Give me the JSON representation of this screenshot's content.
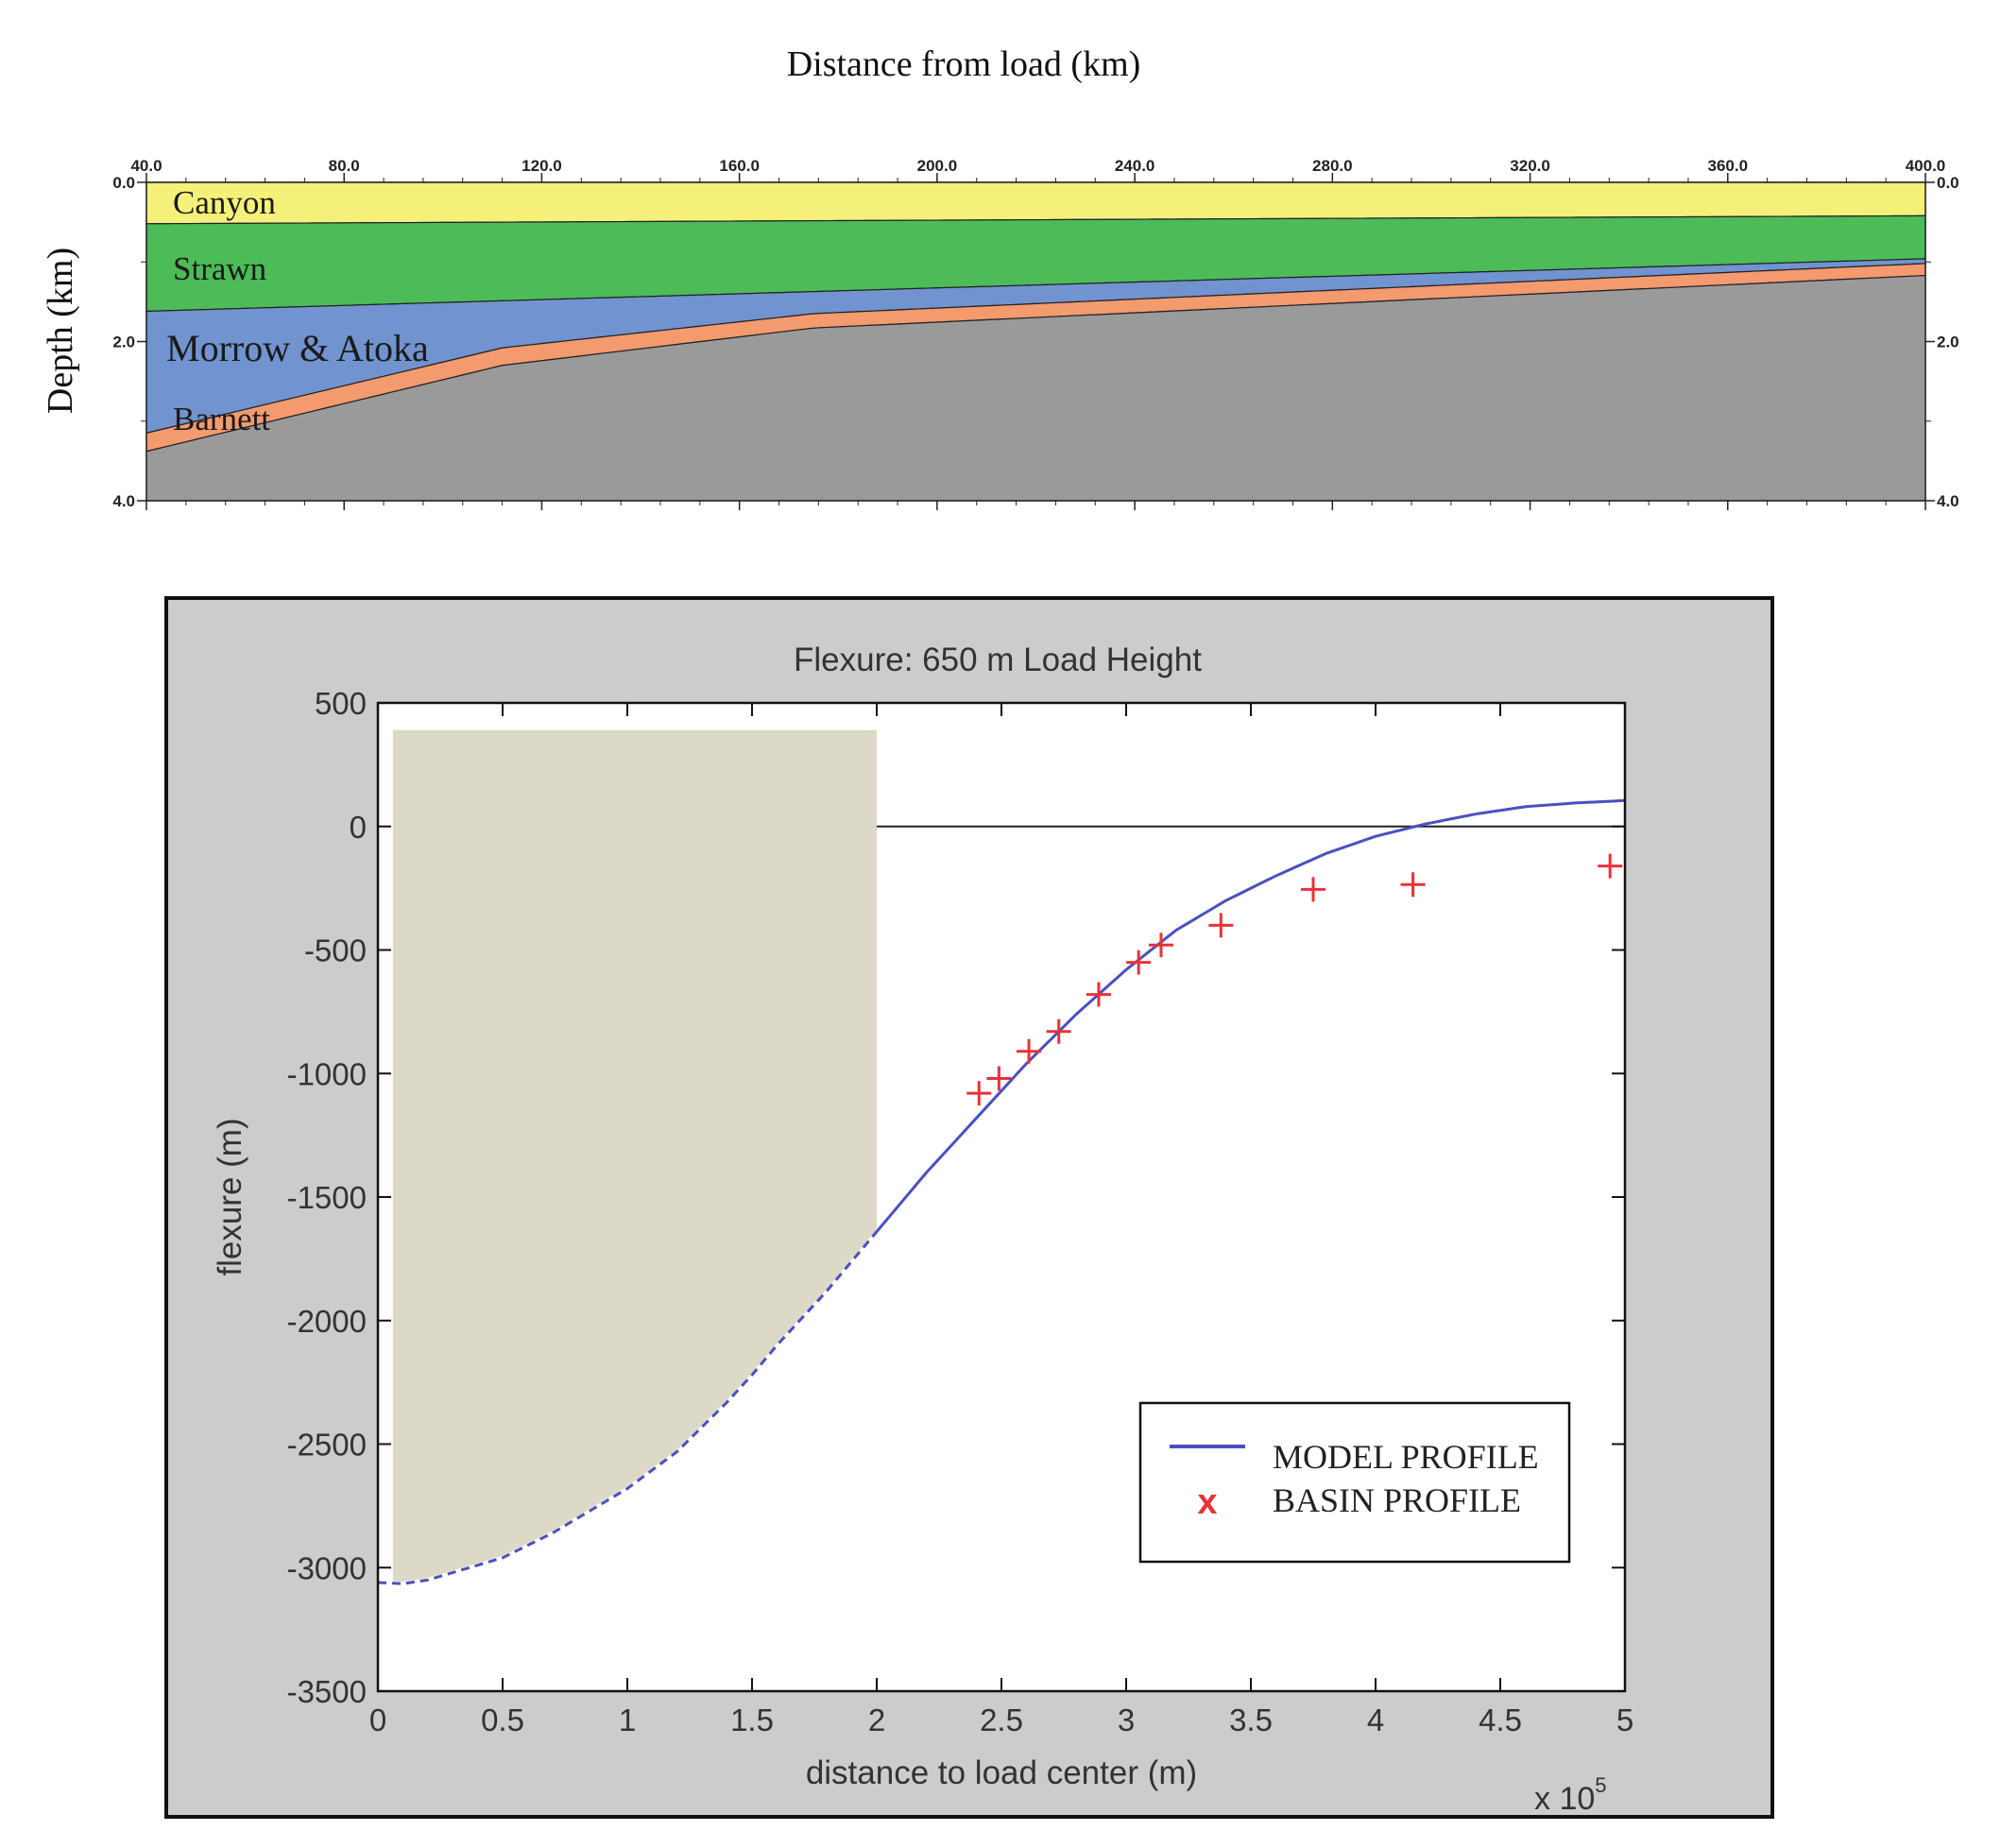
{
  "chart_data": [
    {
      "type": "area",
      "title": "Distance from load (km)",
      "xlabel": "Distance from load (km)",
      "ylabel": "Depth (km)",
      "xlim": [
        40,
        400
      ],
      "ylim": [
        4.0,
        0.0
      ],
      "x_ticks": [
        "40.0",
        "80.0",
        "120.0",
        "160.0",
        "200.0",
        "240.0",
        "280.0",
        "320.0",
        "360.0",
        "400.0"
      ],
      "y_ticks": [
        "0.0",
        "2.0",
        "4.0"
      ],
      "layer_colors": {
        "canyon": "#f5f07a",
        "strawn": "#4cbb58",
        "morrow": "#7193cf",
        "barnett": "#f49a6f",
        "basement": "#9a9a9a"
      },
      "layers": [
        {
          "name": "Canyon",
          "top": [
            [
              40,
              0.0
            ],
            [
              400,
              0.0
            ]
          ]
        },
        {
          "name": "Strawn",
          "top": [
            [
              40,
              0.52
            ],
            [
              400,
              0.42
            ]
          ]
        },
        {
          "name": "Morrow & Atoka",
          "top": [
            [
              40,
              1.62
            ],
            [
              400,
              0.96
            ]
          ]
        },
        {
          "name": "Barnett",
          "top": [
            [
              40,
              3.15
            ],
            [
              112,
              2.08
            ],
            [
              175,
              1.65
            ],
            [
              400,
              1.02
            ]
          ]
        },
        {
          "name": "",
          "top": [
            [
              40,
              3.38
            ],
            [
              112,
              2.3
            ],
            [
              175,
              1.83
            ],
            [
              400,
              1.17
            ]
          ]
        }
      ]
    },
    {
      "type": "line",
      "title": "Flexure: 650 m Load Height",
      "xlabel": "distance to load center (m)",
      "ylabel": "flexure (m)",
      "x_multiplier": "x 10",
      "x_multiplier_exp": "5",
      "xlim": [
        0,
        5
      ],
      "ylim": [
        -3500,
        500
      ],
      "x_ticks": [
        "0",
        "0.5",
        "1",
        "1.5",
        "2",
        "2.5",
        "3",
        "3.5",
        "4",
        "4.5",
        "5"
      ],
      "y_ticks": [
        "500",
        "0",
        "-500",
        "-1000",
        "-1500",
        "-2000",
        "-2500",
        "-3000",
        "-3500"
      ],
      "load_block": {
        "x0": 0.06,
        "x1": 2.0,
        "top": 390
      },
      "series": [
        {
          "name": "MODEL PROFILE",
          "color": "#4a50c0",
          "points": [
            [
              0,
              -3060
            ],
            [
              0.1,
              -3065
            ],
            [
              0.2,
              -3050
            ],
            [
              0.3,
              -3020
            ],
            [
              0.5,
              -2960
            ],
            [
              0.7,
              -2860
            ],
            [
              0.9,
              -2740
            ],
            [
              1.0,
              -2680
            ],
            [
              1.2,
              -2530
            ],
            [
              1.4,
              -2330
            ],
            [
              1.5,
              -2220
            ],
            [
              1.6,
              -2100
            ],
            [
              1.8,
              -1880
            ],
            [
              2.0,
              -1640
            ],
            [
              2.2,
              -1400
            ],
            [
              2.4,
              -1180
            ],
            [
              2.6,
              -960
            ],
            [
              2.8,
              -760
            ],
            [
              3.0,
              -580
            ],
            [
              3.2,
              -420
            ],
            [
              3.4,
              -300
            ],
            [
              3.6,
              -200
            ],
            [
              3.8,
              -110
            ],
            [
              4.0,
              -40
            ],
            [
              4.2,
              10
            ],
            [
              4.4,
              50
            ],
            [
              4.6,
              80
            ],
            [
              4.8,
              95
            ],
            [
              5.0,
              105
            ]
          ],
          "dashed_until_x": 2.0
        },
        {
          "name": "BASIN PROFILE",
          "color": "#e8323a",
          "points": [
            [
              2.41,
              -1080
            ],
            [
              2.49,
              -1020
            ],
            [
              2.61,
              -910
            ],
            [
              2.73,
              -830
            ],
            [
              2.89,
              -680
            ],
            [
              3.05,
              -550
            ],
            [
              3.14,
              -480
            ],
            [
              3.38,
              -400
            ],
            [
              3.75,
              -255
            ],
            [
              4.15,
              -235
            ],
            [
              4.94,
              -160
            ]
          ]
        }
      ],
      "legend": {
        "position": "bottom-right",
        "entries": [
          "MODEL PROFILE",
          "BASIN PROFILE"
        ],
        "marker_glyph": "x"
      }
    }
  ]
}
